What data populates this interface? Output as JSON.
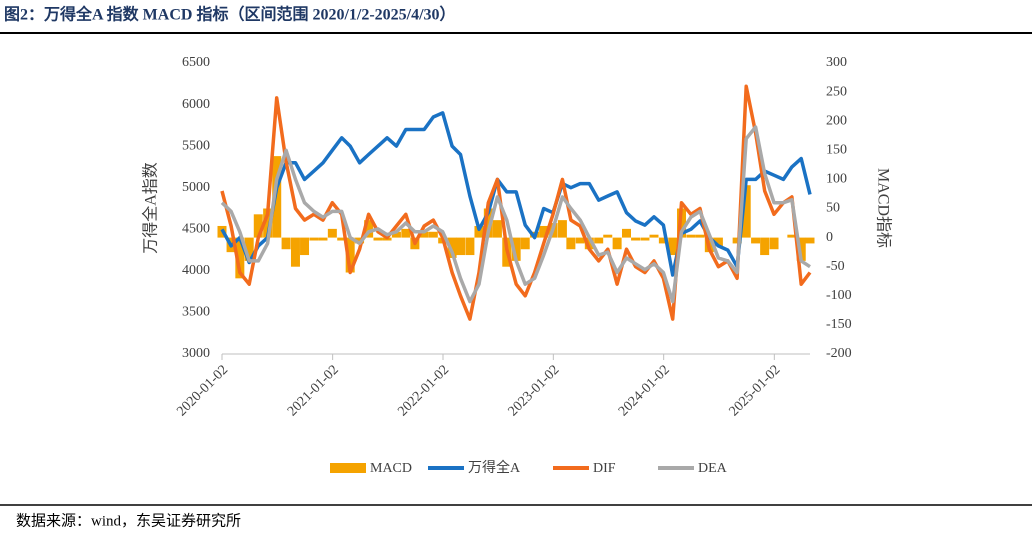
{
  "header": {
    "title": "图2：万得全A 指数 MACD 指标（区间范围 2020/1/2-2025/4/30）"
  },
  "footer": {
    "source": "数据来源：wind，东吴证券研究所"
  },
  "chart_data": {
    "type": "line",
    "y_label": "万得全A指数",
    "y2_label": "MACD指标",
    "x": [
      "2020-01-02",
      "2020-02-01",
      "2020-03-01",
      "2020-04-01",
      "2020-05-01",
      "2020-06-01",
      "2020-07-01",
      "2020-08-01",
      "2020-09-01",
      "2020-10-01",
      "2020-11-01",
      "2020-12-01",
      "2021-01-01",
      "2021-02-01",
      "2021-03-01",
      "2021-04-01",
      "2021-05-01",
      "2021-06-01",
      "2021-07-01",
      "2021-08-01",
      "2021-09-01",
      "2021-10-01",
      "2021-11-01",
      "2021-12-01",
      "2022-01-01",
      "2022-02-01",
      "2022-03-01",
      "2022-04-01",
      "2022-05-01",
      "2022-06-01",
      "2022-07-01",
      "2022-08-01",
      "2022-09-01",
      "2022-10-01",
      "2022-11-01",
      "2022-12-01",
      "2023-01-01",
      "2023-02-01",
      "2023-03-01",
      "2023-04-01",
      "2023-05-01",
      "2023-06-01",
      "2023-07-01",
      "2023-08-01",
      "2023-09-01",
      "2023-10-01",
      "2023-11-01",
      "2023-12-01",
      "2024-01-01",
      "2024-02-01",
      "2024-03-01",
      "2024-04-01",
      "2024-05-01",
      "2024-06-01",
      "2024-07-01",
      "2024-08-01",
      "2024-09-01",
      "2024-10-01",
      "2024-11-01",
      "2024-12-01",
      "2025-01-01",
      "2025-02-01",
      "2025-03-01",
      "2025-04-01",
      "2025-04-30"
    ],
    "xlim": [
      "2020-01-02",
      "2025-04-30"
    ],
    "xticks": [
      "2020-01-02",
      "2021-01-02",
      "2022-01-02",
      "2023-01-02",
      "2024-01-02",
      "2025-01-02"
    ],
    "ylim": [
      3000,
      6500
    ],
    "yticks": [
      3000,
      3500,
      4000,
      4500,
      5000,
      5500,
      6000,
      6500
    ],
    "y2lim": [
      -200,
      300
    ],
    "y2ticks": [
      -200,
      -150,
      -100,
      -50,
      0,
      50,
      100,
      150,
      200,
      250,
      300
    ],
    "series": [
      {
        "name": "MACD",
        "kind": "bar",
        "axis": "y2",
        "color": "#f5a300",
        "values": [
          20,
          -25,
          -70,
          -40,
          40,
          50,
          140,
          -20,
          -50,
          -30,
          -5,
          -5,
          15,
          -5,
          -60,
          -10,
          30,
          -5,
          -5,
          10,
          15,
          -20,
          10,
          10,
          -10,
          -35,
          -30,
          -30,
          20,
          50,
          30,
          -50,
          -40,
          -20,
          10,
          20,
          25,
          30,
          -20,
          -10,
          -20,
          -10,
          5,
          -20,
          15,
          -5,
          -5,
          5,
          -10,
          -30,
          50,
          5,
          5,
          -25,
          -15,
          0,
          -10,
          90,
          -10,
          -30,
          -20,
          0,
          5,
          -40,
          -10
        ]
      },
      {
        "name": "万得全A",
        "kind": "line",
        "axis": "y",
        "color": "#1a72c4",
        "values": [
          4500,
          4300,
          4400,
          4100,
          4300,
          4400,
          5000,
          5300,
          5300,
          5100,
          5200,
          5300,
          5450,
          5600,
          5500,
          5300,
          5400,
          5500,
          5600,
          5500,
          5700,
          5700,
          5700,
          5850,
          5900,
          5500,
          5400,
          4900,
          4500,
          4700,
          5100,
          4950,
          4950,
          4550,
          4400,
          4750,
          4700,
          5050,
          5000,
          5050,
          5050,
          4850,
          4900,
          4950,
          4700,
          4600,
          4550,
          4650,
          4550,
          3950,
          4450,
          4500,
          4600,
          4400,
          4300,
          4250,
          4050,
          5100,
          5100,
          5200,
          5150,
          5100,
          5250,
          5350,
          4920
        ]
      },
      {
        "name": "DIF",
        "kind": "line",
        "axis": "y2",
        "color": "#f26b1d",
        "values": [
          80,
          20,
          -60,
          -80,
          0,
          40,
          240,
          130,
          50,
          30,
          40,
          30,
          60,
          40,
          -60,
          -20,
          40,
          10,
          0,
          20,
          40,
          -10,
          20,
          30,
          0,
          -60,
          -100,
          -140,
          -60,
          60,
          100,
          -20,
          -80,
          -100,
          -60,
          -10,
          40,
          100,
          30,
          20,
          -20,
          -40,
          -20,
          -80,
          -20,
          -50,
          -60,
          -40,
          -70,
          -140,
          60,
          40,
          50,
          -20,
          -50,
          -40,
          -70,
          260,
          180,
          80,
          40,
          60,
          70,
          -80,
          -60
        ]
      },
      {
        "name": "DEA",
        "kind": "line",
        "axis": "y2",
        "color": "#a9a9a9",
        "values": [
          60,
          45,
          10,
          -40,
          -40,
          -10,
          100,
          150,
          100,
          60,
          45,
          35,
          45,
          45,
          0,
          -10,
          10,
          15,
          5,
          10,
          25,
          10,
          10,
          20,
          10,
          -25,
          -70,
          -110,
          -80,
          10,
          70,
          30,
          -40,
          -80,
          -70,
          -30,
          15,
          70,
          50,
          30,
          0,
          -30,
          -25,
          -60,
          -35,
          -45,
          -55,
          -45,
          -60,
          -110,
          10,
          35,
          45,
          5,
          -35,
          -40,
          -60,
          170,
          190,
          110,
          60,
          60,
          65,
          -40,
          -50
        ]
      }
    ]
  }
}
